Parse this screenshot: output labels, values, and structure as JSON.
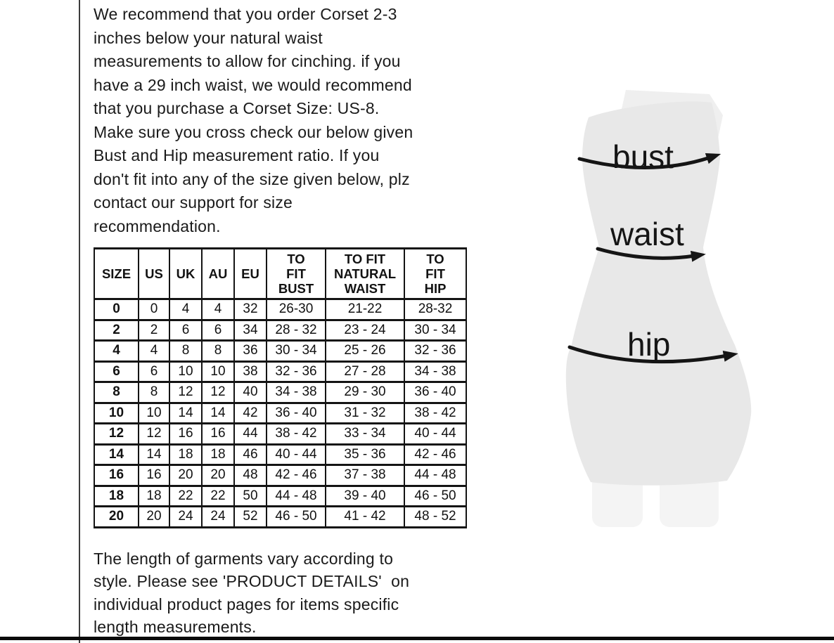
{
  "intro": {
    "lines": [
      "We recommend that you order Corset 2-3",
      "inches below your natural waist",
      "measurements to allow for cinching. if you",
      "have a 29 inch waist, we would recommend",
      "that you purchase a Corset Size: US-8.",
      "Make sure you cross check our below given",
      "Bust and Hip measurement ratio. If you",
      "don't fit into any of the size given below, plz",
      "contact our support for size",
      "recommendation."
    ]
  },
  "table": {
    "headers": [
      "SIZE",
      "US",
      "UK",
      "AU",
      "EU",
      "TO\nFIT\nBUST",
      "TO FIT\nNATURAL\nWAIST",
      "TO\nFIT\nHIP"
    ],
    "rows": [
      [
        "0",
        "0",
        "4",
        "4",
        "32",
        "26-30",
        "21-22",
        "28-32"
      ],
      [
        "2",
        "2",
        "6",
        "6",
        "34",
        "28 - 32",
        "23 - 24",
        "30 - 34"
      ],
      [
        "4",
        "4",
        "8",
        "8",
        "36",
        "30 - 34",
        "25 - 26",
        "32 - 36"
      ],
      [
        "6",
        "6",
        "10",
        "10",
        "38",
        "32 - 36",
        "27 - 28",
        "34 - 38"
      ],
      [
        "8",
        "8",
        "12",
        "12",
        "40",
        "34 - 38",
        "29 - 30",
        "36 - 40"
      ],
      [
        "10",
        "10",
        "14",
        "14",
        "42",
        "36 - 40",
        "31 - 32",
        "38 - 42"
      ],
      [
        "12",
        "12",
        "16",
        "16",
        "44",
        "38 - 42",
        "33 - 34",
        "40 - 44"
      ],
      [
        "14",
        "14",
        "18",
        "18",
        "46",
        "40 - 44",
        "35 - 36",
        "42 - 46"
      ],
      [
        "16",
        "16",
        "20",
        "20",
        "48",
        "42 - 46",
        "37 - 38",
        "44 - 48"
      ],
      [
        "18",
        "18",
        "22",
        "22",
        "50",
        "44 - 48",
        "39 - 40",
        "46 - 50"
      ],
      [
        "20",
        "20",
        "24",
        "24",
        "52",
        "46 - 50",
        "41 - 42",
        "48 - 52"
      ]
    ]
  },
  "footer": {
    "lines": [
      "The length of garments vary according to",
      "style. Please see 'PRODUCT DETAILS'  on",
      "individual product pages for items specific",
      "length measurements."
    ]
  },
  "figure": {
    "labels": {
      "bust": "bust",
      "waist": "waist",
      "hip": "hip"
    },
    "colors": {
      "body": "#e8e8e8",
      "body_top": "#efefef",
      "legs": "#f4f4f4",
      "ink": "#151515"
    }
  }
}
